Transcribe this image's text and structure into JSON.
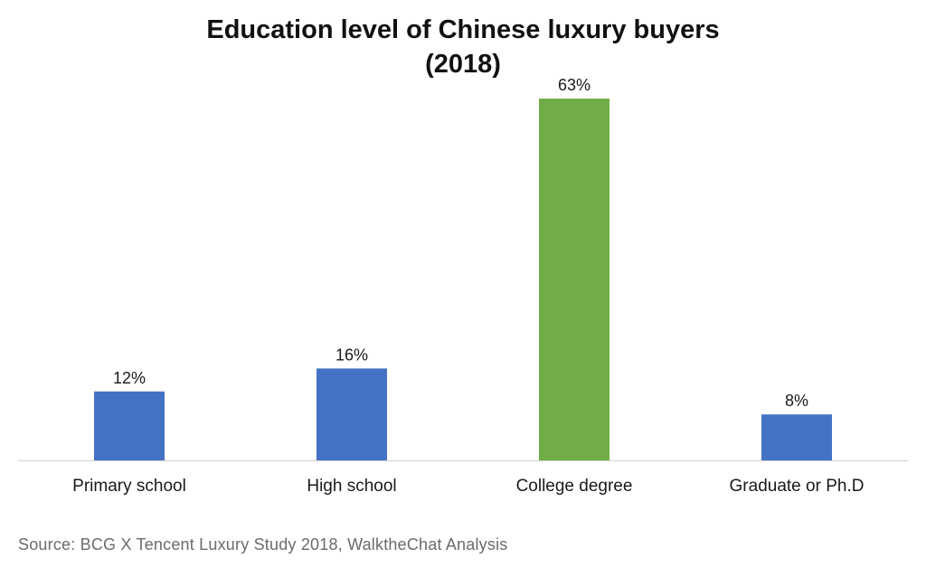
{
  "chart_data": {
    "type": "bar",
    "title_lines": [
      "Education level of Chinese luxury buyers",
      "(2018)"
    ],
    "categories": [
      "Primary school",
      "High school",
      "College degree",
      "Graduate or Ph.D"
    ],
    "values": [
      12,
      16,
      63,
      8
    ],
    "value_labels": [
      "12%",
      "16%",
      "63%",
      "8%"
    ],
    "unit": "%",
    "bar_colors": [
      "#4472C4",
      "#4472C4",
      "#70AD47",
      "#4472C4"
    ],
    "xlabel": "",
    "ylabel": "",
    "ylim": [
      0,
      66
    ],
    "grid": false,
    "legend": "none",
    "source": "Source: BCG X Tencent Luxury Study 2018, WalktheChat Analysis"
  }
}
